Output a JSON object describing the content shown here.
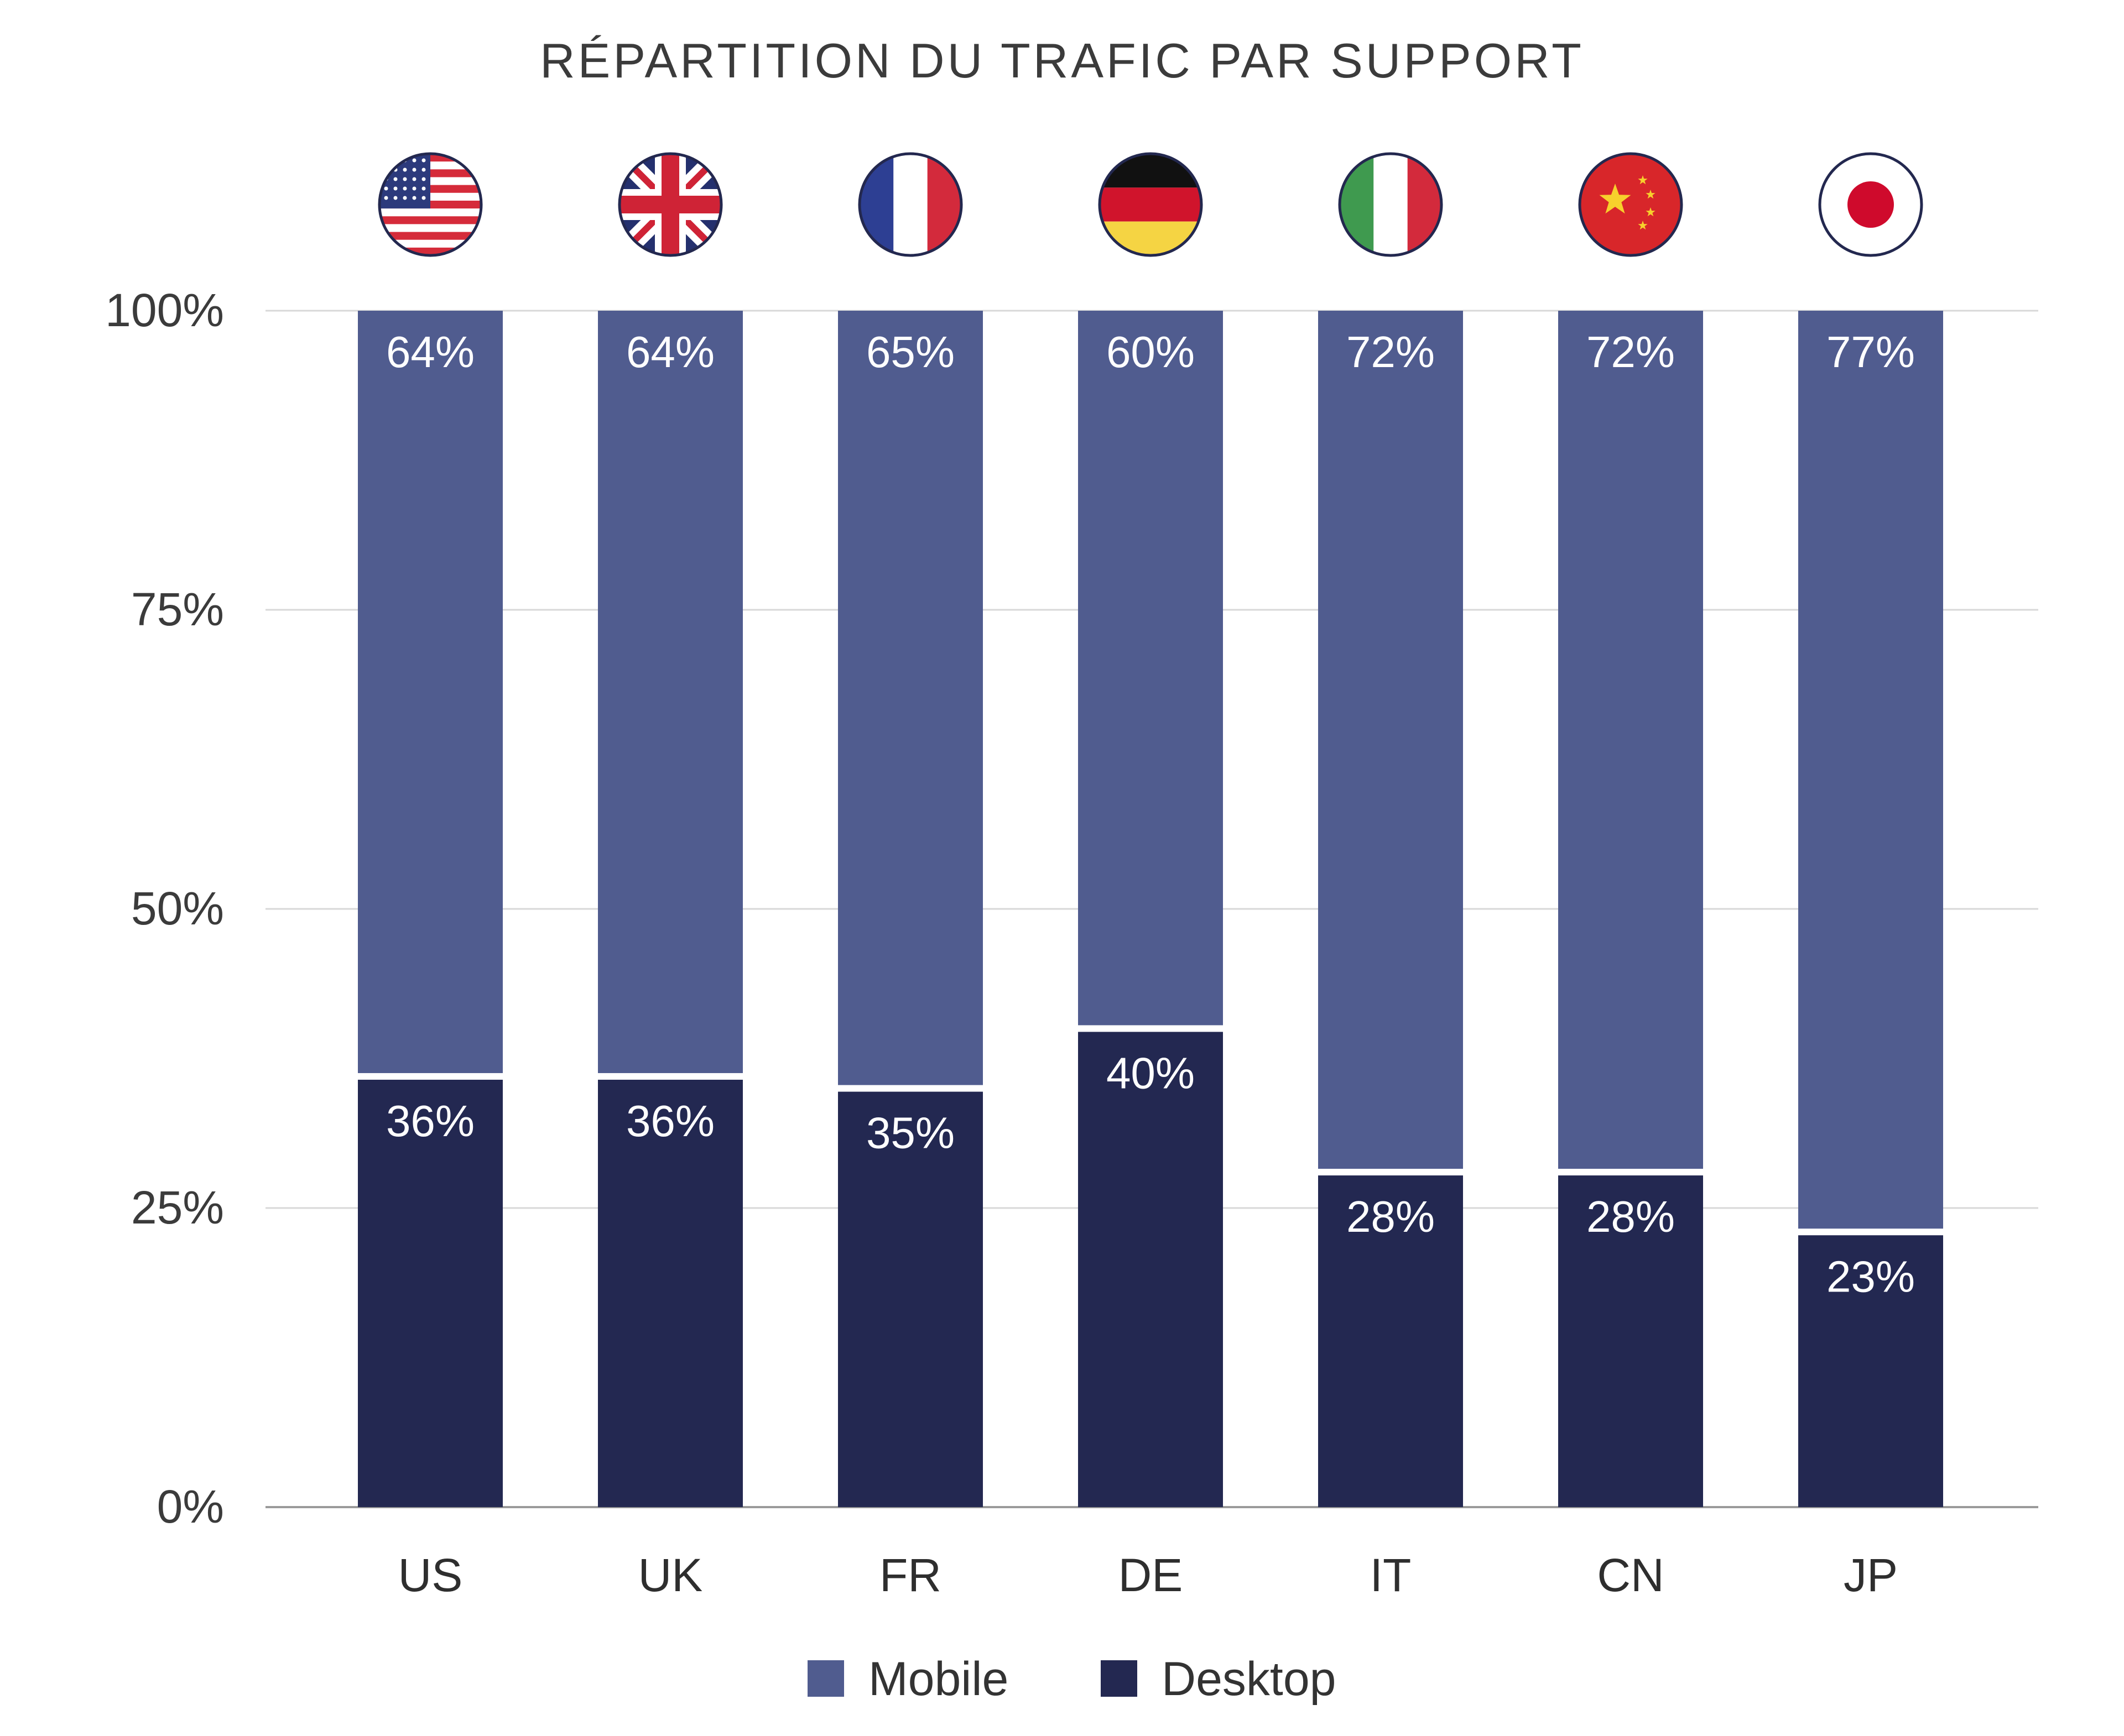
{
  "chart_data": {
    "type": "bar",
    "stacked": true,
    "title": "RÉPARTITION DU TRAFIC PAR SUPPORT",
    "categories": [
      "US",
      "UK",
      "FR",
      "DE",
      "IT",
      "CN",
      "JP"
    ],
    "flags": [
      "us-flag-icon",
      "uk-flag-icon",
      "france-flag-icon",
      "germany-flag-icon",
      "italy-flag-icon",
      "china-flag-icon",
      "japan-flag-icon"
    ],
    "series": [
      {
        "name": "Desktop",
        "values": [
          36,
          36,
          35,
          40,
          28,
          28,
          23
        ],
        "labels": [
          "36%",
          "36%",
          "35%",
          "40%",
          "28%",
          "28%",
          "23%"
        ],
        "color": "#232851"
      },
      {
        "name": "Mobile",
        "values": [
          64,
          64,
          65,
          60,
          72,
          72,
          77
        ],
        "labels": [
          "64%",
          "64%",
          "65%",
          "60%",
          "72%",
          "72%",
          "77%"
        ],
        "color": "#505c8f"
      }
    ],
    "yticks": [
      "0%",
      "25%",
      "50%",
      "75%",
      "100%"
    ],
    "ytick_values": [
      0,
      25,
      50,
      75,
      100
    ],
    "ylim": [
      0,
      100
    ],
    "grid": true,
    "legend_position": "bottom",
    "legend": [
      {
        "name": "Mobile",
        "color": "#505c8f"
      },
      {
        "name": "Desktop",
        "color": "#232851"
      }
    ],
    "xlabel": "",
    "ylabel": ""
  }
}
